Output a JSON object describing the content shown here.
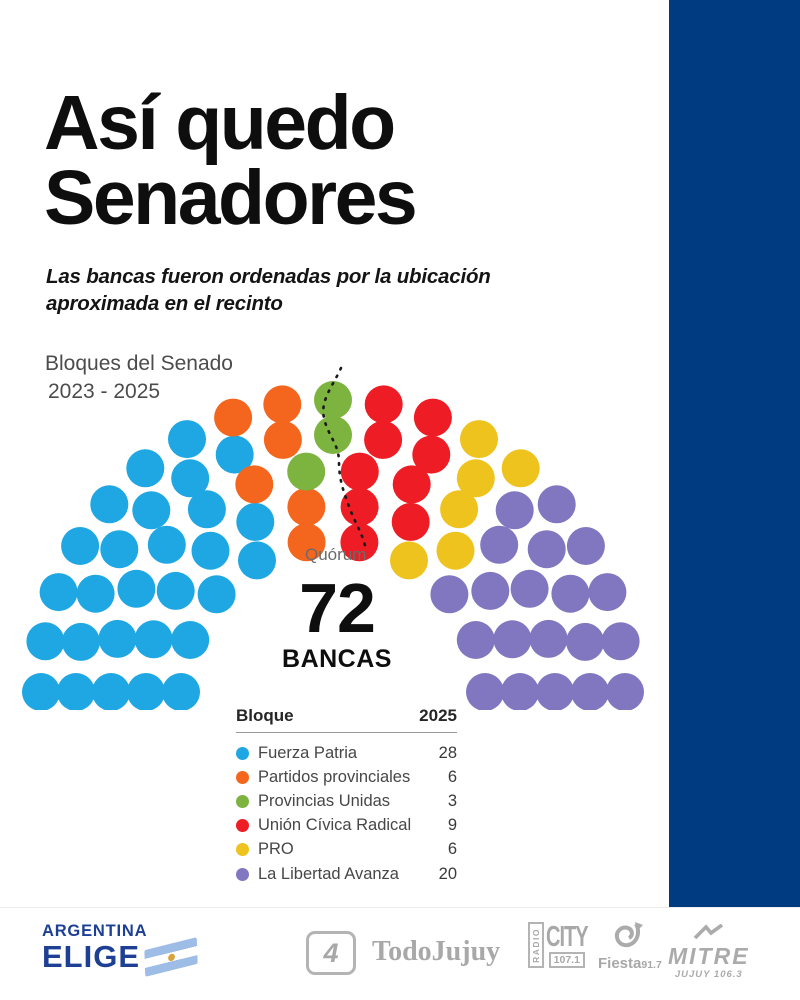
{
  "page": {
    "title_line1": "Así quedo",
    "title_line2": "Senadores",
    "subtitle": "Las bancas fueron ordenadas por la ubicación aproximada en el recinto",
    "chart_caption_line1": "Bloques del Senado",
    "chart_caption_line2": "2023 - 2025",
    "total_number": "72",
    "total_label": "BANCAS",
    "quorum_label": "Quórum"
  },
  "colors": {
    "accent_bar": "#003a80",
    "title_text": "#0e0e0e",
    "caption_text": "#4c4c4c",
    "footer_logo_gray": "#a8a8a8",
    "brand_blue": "#1d3f94"
  },
  "chart_data": {
    "type": "pie",
    "variant": "parliament-hemicycle",
    "title": "Bloques del Senado 2023 - 2025",
    "total_seats": 72,
    "rows_distribution": [
      10,
      12,
      14,
      17,
      19
    ],
    "quorum_annotation": "Quórum",
    "legend_position": "bottom-table",
    "series": [
      {
        "name": "Fuerza Patria",
        "value": 28,
        "color": "#1ea7e2"
      },
      {
        "name": "Partidos provinciales",
        "value": 6,
        "color": "#f4651d"
      },
      {
        "name": "Provincias Unidas",
        "value": 3,
        "color": "#7db33f"
      },
      {
        "name": "Unión Cívica Radical",
        "value": 9,
        "color": "#ee1c24"
      },
      {
        "name": "PRO",
        "value": 6,
        "color": "#eec31d"
      },
      {
        "name": "La Libertad Avanza",
        "value": 20,
        "color": "#8077c0"
      }
    ]
  },
  "table": {
    "headers": [
      "Bloque",
      "2025"
    ]
  },
  "footer": {
    "brand_line1": "ARGENTINA",
    "brand_line2": "ELIGE",
    "logo_4": "4",
    "logo_todojujuy": "TodoJujuy",
    "logo_radio_city": {
      "radio": "RADIO",
      "city": "CITY",
      "freq": "107.1"
    },
    "logo_fiesta": {
      "name": "Fiesta",
      "freq": "91.7"
    },
    "logo_mitre": {
      "name": "MITRE",
      "sub": "JUJUY 106.3"
    }
  }
}
